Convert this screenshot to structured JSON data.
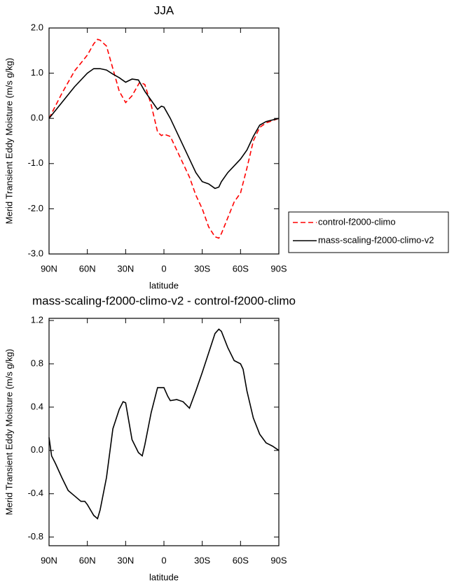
{
  "chart_data": [
    {
      "type": "line",
      "title": "JJA",
      "xlabel": "latitude",
      "ylabel": "Merid Transient Eddy Moisture (m/s g/kg)",
      "x": [
        90,
        80,
        70,
        60,
        55,
        52,
        50,
        45,
        40,
        35,
        30,
        25,
        20,
        19,
        15,
        10,
        5,
        2,
        0,
        -5,
        -10,
        -15,
        -20,
        -25,
        -30,
        -35,
        -40,
        -43,
        -45,
        -50,
        -55,
        -60,
        -65,
        -70,
        -75,
        -80,
        -90
      ],
      "series": [
        {
          "name": "control-f2000-climo",
          "color": "#ff0000",
          "style": "dashed",
          "values": [
            0.0,
            0.55,
            1.05,
            1.4,
            1.65,
            1.75,
            1.73,
            1.6,
            1.1,
            0.6,
            0.35,
            0.5,
            0.75,
            0.8,
            0.75,
            0.3,
            -0.3,
            -0.38,
            -0.35,
            -0.4,
            -0.7,
            -1.0,
            -1.3,
            -1.7,
            -2.0,
            -2.4,
            -2.62,
            -2.65,
            -2.55,
            -2.2,
            -1.85,
            -1.65,
            -1.1,
            -0.5,
            -0.2,
            -0.1,
            0.0
          ]
        },
        {
          "name": "mass-scaling-f2000-climo-v2",
          "color": "#000000",
          "style": "solid",
          "values": [
            0.0,
            0.35,
            0.7,
            1.0,
            1.1,
            1.1,
            1.1,
            1.07,
            0.98,
            0.9,
            0.8,
            0.87,
            0.85,
            0.8,
            0.6,
            0.4,
            0.2,
            0.27,
            0.25,
            0.0,
            -0.3,
            -0.6,
            -0.9,
            -1.2,
            -1.4,
            -1.45,
            -1.55,
            -1.52,
            -1.4,
            -1.2,
            -1.05,
            -0.9,
            -0.7,
            -0.4,
            -0.15,
            -0.07,
            0.0
          ]
        }
      ],
      "xlim": [
        90,
        -90
      ],
      "xticks": [
        {
          "value": 90,
          "label": "90N"
        },
        {
          "value": 60,
          "label": "60N"
        },
        {
          "value": 30,
          "label": "30N"
        },
        0,
        {
          "value": -30,
          "label": "30S"
        },
        {
          "value": -60,
          "label": "60S"
        },
        {
          "value": -90,
          "label": "90S"
        }
      ],
      "ylim": [
        -3,
        2
      ],
      "yticks": [
        {
          "value": 2,
          "label": "2.0"
        },
        {
          "value": 1,
          "label": "1.0"
        },
        {
          "value": 0,
          "label": "0.0"
        },
        {
          "value": -1,
          "label": "-1.0"
        },
        {
          "value": -2,
          "label": "-2.0"
        },
        {
          "value": -3,
          "label": "-3.0"
        }
      ],
      "legend": "right"
    },
    {
      "type": "line",
      "title": "mass-scaling-f2000-climo-v2 - control-f2000-climo",
      "xlabel": "latitude",
      "ylabel": "Merid Transient Eddy Moisture (m/s g/kg)",
      "x": [
        90,
        88,
        85,
        80,
        75,
        70,
        65,
        62,
        60,
        55,
        52,
        50,
        45,
        40,
        35,
        32,
        30,
        25,
        20,
        17,
        15,
        10,
        5,
        0,
        -3,
        -5,
        -10,
        -15,
        -20,
        -25,
        -30,
        -35,
        -40,
        -43,
        -45,
        -50,
        -55,
        -60,
        -62,
        -65,
        -70,
        -75,
        -80,
        -85,
        -90
      ],
      "series": [
        {
          "color": "#000000",
          "style": "solid",
          "values": [
            0.12,
            -0.05,
            -0.12,
            -0.25,
            -0.37,
            -0.42,
            -0.47,
            -0.47,
            -0.5,
            -0.6,
            -0.63,
            -0.55,
            -0.25,
            0.2,
            0.38,
            0.45,
            0.44,
            0.1,
            -0.02,
            -0.05,
            0.05,
            0.35,
            0.58,
            0.58,
            0.5,
            0.46,
            0.47,
            0.45,
            0.39,
            0.55,
            0.72,
            0.9,
            1.08,
            1.12,
            1.1,
            0.95,
            0.83,
            0.8,
            0.75,
            0.55,
            0.3,
            0.15,
            0.07,
            0.04,
            0.0
          ]
        }
      ],
      "xlim": [
        90,
        -90
      ],
      "xticks": [
        {
          "value": 90,
          "label": "90N"
        },
        {
          "value": 60,
          "label": "60N"
        },
        {
          "value": 30,
          "label": "30N"
        },
        0,
        {
          "value": -30,
          "label": "30S"
        },
        {
          "value": -60,
          "label": "60S"
        },
        {
          "value": -90,
          "label": "90S"
        }
      ],
      "ylim": [
        -0.88,
        1.22
      ],
      "yticks": [
        1.2,
        0.8,
        0.4,
        {
          "value": 0,
          "label": "0.0"
        },
        -0.4,
        -0.8
      ]
    }
  ]
}
